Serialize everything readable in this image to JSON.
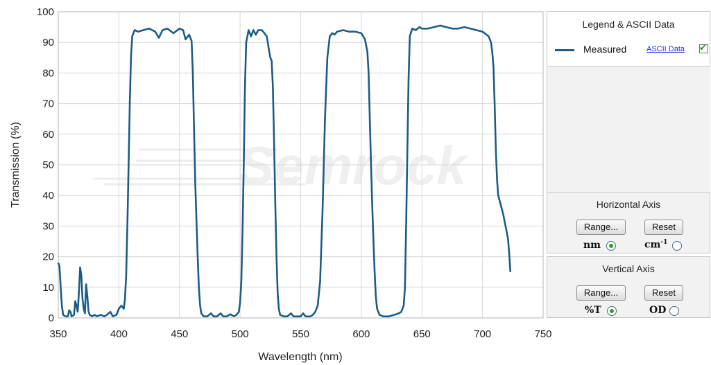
{
  "chart_data": {
    "type": "line",
    "title": "",
    "xlabel": "Wavelength (nm)",
    "ylabel": "Transmission (%)",
    "xlim": [
      350,
      750
    ],
    "ylim": [
      0,
      100
    ],
    "x_ticks": [
      350,
      400,
      450,
      500,
      550,
      600,
      650,
      700,
      750
    ],
    "y_ticks": [
      0,
      10,
      20,
      30,
      40,
      50,
      60,
      70,
      80,
      90,
      100
    ],
    "grid": true,
    "legend_position": "right",
    "watermark": "Semrock",
    "series": [
      {
        "name": "Measured",
        "color": "#1c5c85",
        "points": [
          [
            350,
            18
          ],
          [
            351,
            17
          ],
          [
            352,
            10
          ],
          [
            353,
            4
          ],
          [
            354,
            1
          ],
          [
            356,
            0.5
          ],
          [
            358,
            0.5
          ],
          [
            359,
            2.5
          ],
          [
            360,
            2
          ],
          [
            361,
            0.5
          ],
          [
            363,
            1
          ],
          [
            364,
            5.5
          ],
          [
            365,
            4
          ],
          [
            366,
            2
          ],
          [
            367,
            8
          ],
          [
            368,
            16.5
          ],
          [
            369,
            14
          ],
          [
            370,
            6
          ],
          [
            371,
            3
          ],
          [
            372,
            1.5
          ],
          [
            373,
            11
          ],
          [
            374,
            7
          ],
          [
            375,
            2
          ],
          [
            376,
            1
          ],
          [
            378,
            0.5
          ],
          [
            380,
            1
          ],
          [
            382,
            0.5
          ],
          [
            385,
            1
          ],
          [
            388,
            0.5
          ],
          [
            390,
            1
          ],
          [
            393,
            2
          ],
          [
            395,
            0.5
          ],
          [
            398,
            1
          ],
          [
            400,
            3
          ],
          [
            402,
            4
          ],
          [
            404,
            3
          ],
          [
            405,
            6
          ],
          [
            406,
            14
          ],
          [
            407,
            30
          ],
          [
            408,
            50
          ],
          [
            409,
            70
          ],
          [
            410,
            85
          ],
          [
            411,
            92
          ],
          [
            413,
            94
          ],
          [
            416,
            93.5
          ],
          [
            420,
            94
          ],
          [
            425,
            94.5
          ],
          [
            430,
            93.5
          ],
          [
            433,
            91.5
          ],
          [
            436,
            94
          ],
          [
            440,
            94.5
          ],
          [
            445,
            93
          ],
          [
            450,
            94.5
          ],
          [
            453,
            94
          ],
          [
            455,
            91
          ],
          [
            458,
            92.5
          ],
          [
            460,
            90.5
          ],
          [
            461,
            80
          ],
          [
            462,
            62
          ],
          [
            463,
            44
          ],
          [
            464,
            32
          ],
          [
            465,
            20
          ],
          [
            466,
            10
          ],
          [
            467,
            4
          ],
          [
            468,
            1.5
          ],
          [
            470,
            0.5
          ],
          [
            473,
            0.5
          ],
          [
            476,
            1.5
          ],
          [
            478,
            0.5
          ],
          [
            481,
            0.5
          ],
          [
            484,
            1.5
          ],
          [
            486,
            0.5
          ],
          [
            489,
            0.5
          ],
          [
            492,
            1.2
          ],
          [
            495,
            0.5
          ],
          [
            497,
            1
          ],
          [
            499,
            2
          ],
          [
            500,
            5
          ],
          [
            501,
            12
          ],
          [
            502,
            28
          ],
          [
            503,
            50
          ],
          [
            504,
            75
          ],
          [
            505,
            90
          ],
          [
            507,
            94
          ],
          [
            509,
            92
          ],
          [
            511,
            94
          ],
          [
            513,
            92.5
          ],
          [
            515,
            94
          ],
          [
            518,
            94
          ],
          [
            520,
            93
          ],
          [
            522,
            92
          ],
          [
            524,
            87
          ],
          [
            525,
            85
          ],
          [
            526,
            84
          ],
          [
            527,
            76
          ],
          [
            528,
            58
          ],
          [
            529,
            38
          ],
          [
            530,
            20
          ],
          [
            531,
            8
          ],
          [
            532,
            3
          ],
          [
            533,
            1
          ],
          [
            536,
            0.5
          ],
          [
            539,
            0.5
          ],
          [
            542,
            1.5
          ],
          [
            544,
            0.5
          ],
          [
            547,
            0.5
          ],
          [
            550,
            0.5
          ],
          [
            552,
            1.5
          ],
          [
            554,
            0.5
          ],
          [
            558,
            0.5
          ],
          [
            560,
            1
          ],
          [
            562,
            2
          ],
          [
            564,
            4
          ],
          [
            566,
            12
          ],
          [
            568,
            35
          ],
          [
            570,
            65
          ],
          [
            572,
            85
          ],
          [
            574,
            92
          ],
          [
            576,
            93
          ],
          [
            578,
            92.5
          ],
          [
            580,
            93.5
          ],
          [
            585,
            94
          ],
          [
            590,
            93.5
          ],
          [
            595,
            93.5
          ],
          [
            600,
            93
          ],
          [
            603,
            91
          ],
          [
            605,
            87
          ],
          [
            606,
            80
          ],
          [
            607,
            65
          ],
          [
            608,
            50
          ],
          [
            609,
            37
          ],
          [
            610,
            25
          ],
          [
            611,
            15
          ],
          [
            612,
            7
          ],
          [
            613,
            3
          ],
          [
            615,
            1
          ],
          [
            618,
            0.5
          ],
          [
            623,
            0.5
          ],
          [
            627,
            1
          ],
          [
            631,
            1.5
          ],
          [
            633,
            2
          ],
          [
            635,
            4
          ],
          [
            636,
            10
          ],
          [
            637,
            30
          ],
          [
            638,
            55
          ],
          [
            639,
            78
          ],
          [
            640,
            92
          ],
          [
            642,
            94.5
          ],
          [
            645,
            94
          ],
          [
            648,
            95
          ],
          [
            650,
            94.5
          ],
          [
            655,
            94.5
          ],
          [
            660,
            95
          ],
          [
            665,
            95.5
          ],
          [
            670,
            95
          ],
          [
            675,
            94.5
          ],
          [
            680,
            94.5
          ],
          [
            685,
            95
          ],
          [
            690,
            94.5
          ],
          [
            695,
            94
          ],
          [
            700,
            93.5
          ],
          [
            705,
            92
          ],
          [
            707,
            90
          ],
          [
            708,
            87
          ],
          [
            709,
            82
          ],
          [
            710,
            70
          ],
          [
            711,
            55
          ],
          [
            712,
            45
          ],
          [
            713,
            40
          ],
          [
            715,
            37
          ],
          [
            717,
            34
          ],
          [
            719,
            30
          ],
          [
            721,
            26
          ],
          [
            722,
            21
          ],
          [
            723,
            15
          ]
        ]
      }
    ]
  },
  "legend_panel": {
    "title": "Legend & ASCII Data",
    "series_label": "Measured",
    "ascii_link": "ASCII Data",
    "ascii_checked": true
  },
  "horizontal_axis_panel": {
    "title": "Horizontal Axis",
    "range_button": "Range...",
    "reset_button": "Reset",
    "option_nm": "nm",
    "option_cm": "cm",
    "option_cm_sup": "-1",
    "selected": "nm"
  },
  "vertical_axis_panel": {
    "title": "Vertical  Axis",
    "range_button": "Range...",
    "reset_button": "Reset",
    "option_t": "%T",
    "option_od": "OD",
    "selected": "%T"
  }
}
